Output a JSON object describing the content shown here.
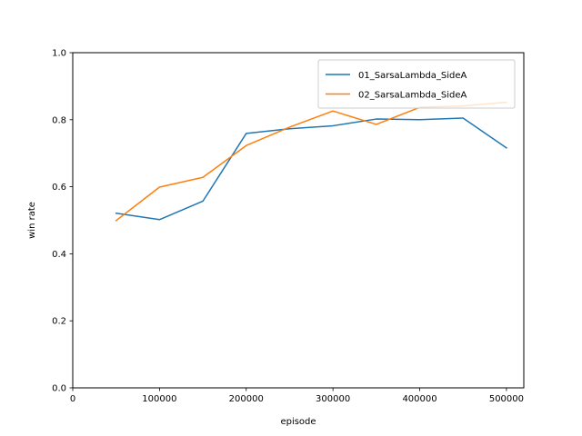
{
  "chart_data": {
    "type": "line",
    "title": "",
    "xlabel": "episode",
    "ylabel": "win rate",
    "xlim": [
      0,
      520000
    ],
    "ylim": [
      0.0,
      1.0
    ],
    "xticks": [
      0,
      100000,
      200000,
      300000,
      400000,
      500000
    ],
    "xtick_labels": [
      "0",
      "100000",
      "200000",
      "300000",
      "400000",
      "500000"
    ],
    "yticks": [
      0.0,
      0.2,
      0.4,
      0.6,
      0.8,
      1.0
    ],
    "ytick_labels": [
      "0.0",
      "0.2",
      "0.4",
      "0.6",
      "0.8",
      "1.0"
    ],
    "grid": false,
    "legend_position": "top-right",
    "x": [
      50000,
      100000,
      150000,
      200000,
      250000,
      300000,
      350000,
      400000,
      450000,
      500000
    ],
    "series": [
      {
        "name": "01_SarsaLambda_SideA",
        "color": "#1f77b4",
        "values": [
          0.521,
          0.502,
          0.557,
          0.759,
          0.773,
          0.782,
          0.802,
          0.8,
          0.805,
          0.716
        ]
      },
      {
        "name": "02_SarsaLambda_SideA",
        "color": "#ff7f0e",
        "values": [
          0.499,
          0.599,
          0.628,
          0.723,
          0.778,
          0.826,
          0.786,
          0.837,
          0.841,
          0.852
        ]
      }
    ]
  }
}
